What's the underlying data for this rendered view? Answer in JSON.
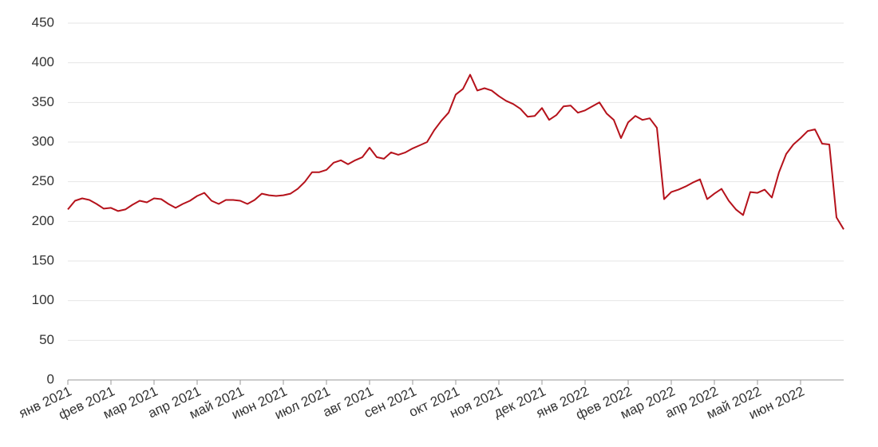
{
  "chart_data": {
    "type": "line",
    "categories": [
      "янв 2021",
      null,
      null,
      null,
      null,
      null,
      "фев 2021",
      null,
      null,
      null,
      null,
      null,
      "мар 2021",
      null,
      null,
      null,
      null,
      null,
      "апр 2021",
      null,
      null,
      null,
      null,
      null,
      "май 2021",
      null,
      null,
      null,
      null,
      null,
      "июн 2021",
      null,
      null,
      null,
      null,
      null,
      "июл 2021",
      null,
      null,
      null,
      null,
      null,
      "авг 2021",
      null,
      null,
      null,
      null,
      null,
      "сен 2021",
      null,
      null,
      null,
      null,
      null,
      "окт 2021",
      null,
      null,
      null,
      null,
      null,
      "ноя 2021",
      null,
      null,
      null,
      null,
      null,
      "дек 2021",
      null,
      null,
      null,
      null,
      null,
      "янв 2022",
      null,
      null,
      null,
      null,
      null,
      "фев 2022",
      null,
      null,
      null,
      null,
      null,
      "мар 2022",
      null,
      null,
      null,
      null,
      null,
      "апр 2022",
      null,
      null,
      null,
      null,
      null,
      "май 2022",
      null,
      null,
      null,
      null,
      null,
      "июн 2022",
      null,
      null,
      null,
      null,
      null,
      null
    ],
    "series": [
      {
        "color": "#b5121b",
        "values": [
          215,
          226,
          229,
          227,
          222,
          216,
          217,
          213,
          215,
          221,
          226,
          224,
          229,
          228,
          222,
          217,
          222,
          226,
          232,
          236,
          226,
          222,
          227,
          227,
          226,
          222,
          227,
          235,
          233,
          232,
          233,
          235,
          241,
          250,
          262,
          262,
          265,
          274,
          277,
          272,
          277,
          281,
          293,
          281,
          279,
          287,
          284,
          287,
          292,
          296,
          300,
          315,
          327,
          337,
          360,
          367,
          385,
          365,
          368,
          365,
          358,
          352,
          348,
          342,
          332,
          333,
          343,
          328,
          334,
          345,
          346,
          337,
          340,
          345,
          350,
          336,
          328,
          305,
          325,
          333,
          328,
          330,
          318,
          228,
          237,
          240,
          244,
          249,
          253,
          228,
          235,
          241,
          226,
          215,
          208,
          237,
          236,
          240,
          230,
          262,
          285,
          297,
          305,
          314,
          316,
          298,
          297,
          205,
          190
        ]
      }
    ],
    "ylim": [
      0,
      450
    ],
    "yticks": [
      0,
      50,
      100,
      150,
      200,
      250,
      300,
      350,
      400,
      450
    ],
    "grid": true
  }
}
